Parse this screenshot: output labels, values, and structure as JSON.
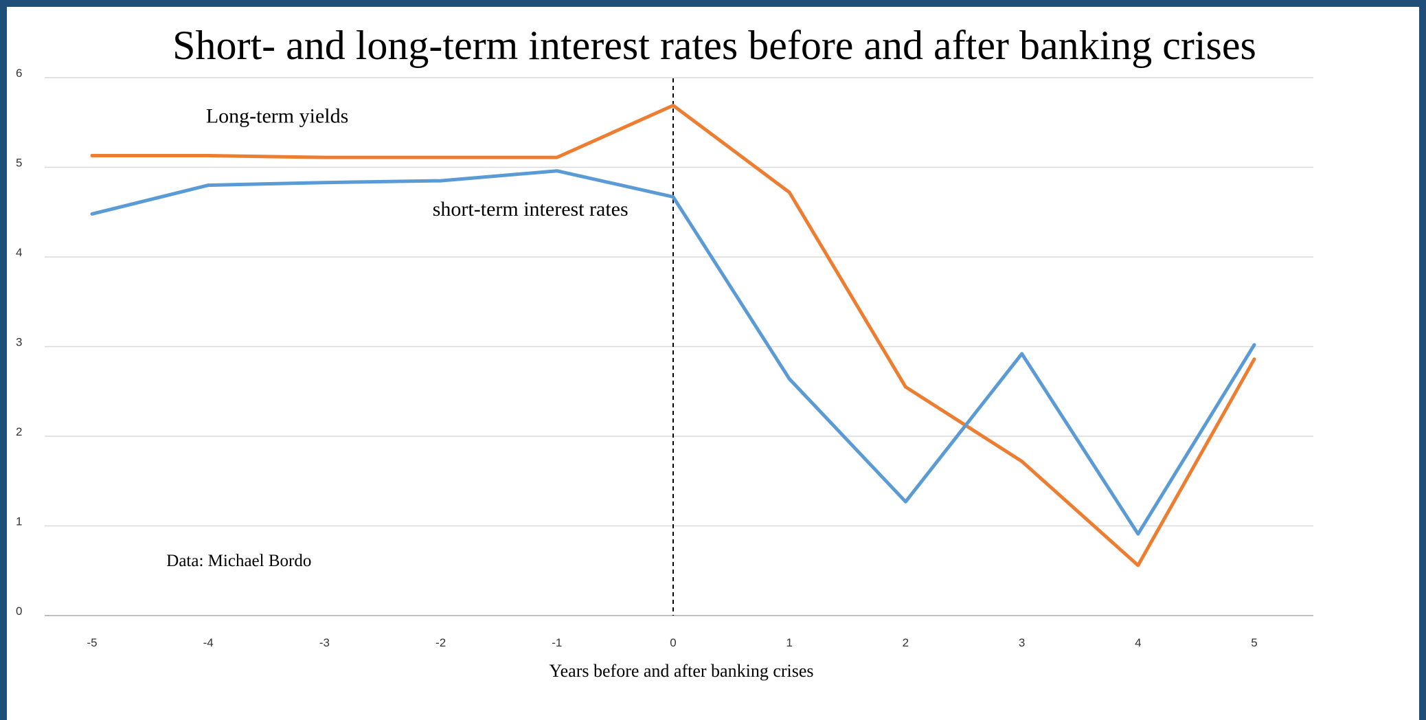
{
  "chart_data": {
    "type": "line",
    "title": "Short- and long-term interest rates before and after banking crises",
    "xlabel": "Years before and after banking crises",
    "ylabel": "",
    "x": [
      -5,
      -4,
      -3,
      -2,
      -1,
      0,
      1,
      2,
      3,
      4,
      5
    ],
    "x_tick_labels": [
      "-5",
      "-4",
      "-3",
      "-2",
      "-1",
      "0",
      "1",
      "2",
      "3",
      "4",
      "5"
    ],
    "y_tick_labels": [
      "0",
      "1",
      "2",
      "3",
      "4",
      "5",
      "6"
    ],
    "ylim": [
      0,
      6
    ],
    "grid": "horizontal",
    "crisis_marker_x": 0,
    "series": [
      {
        "label": "Long-term yields",
        "color": "#ed7d31",
        "values": [
          5.13,
          5.13,
          5.11,
          5.11,
          5.11,
          5.69,
          4.72,
          2.55,
          1.72,
          0.56,
          2.86
        ]
      },
      {
        "label": "short-term interest rates",
        "color": "#5b9bd5",
        "values": [
          4.48,
          4.8,
          4.83,
          4.85,
          4.96,
          4.67,
          2.64,
          1.27,
          2.92,
          0.91,
          3.02
        ]
      }
    ],
    "annotations": [
      {
        "text": "Long-term yields",
        "x": -4.02,
        "y": 5.5
      },
      {
        "text": "short-term interest rates",
        "x": -2.07,
        "y": 4.46
      },
      {
        "text": "Data: Michael Bordo",
        "x": -4.36,
        "y": 0.55
      }
    ]
  }
}
